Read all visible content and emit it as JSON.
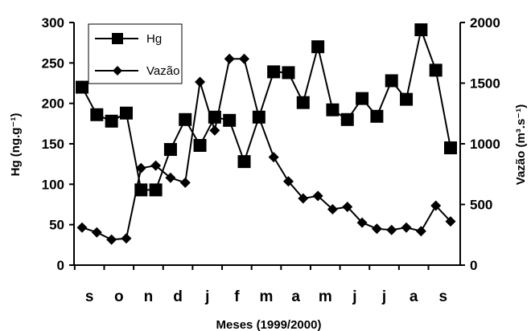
{
  "chart_data": {
    "type": "line",
    "title": "",
    "xlabel": "Meses (1999/2000)",
    "ylabel_left": "Hg (ng.g⁻¹)",
    "ylabel_right": "Vazão (m³.s⁻¹)",
    "ylim_left": [
      0,
      300
    ],
    "ylim_right": [
      0,
      2000
    ],
    "yticks_left": [
      0,
      50,
      100,
      150,
      200,
      250,
      300
    ],
    "yticks_right": [
      0,
      500,
      1000,
      1500,
      2000
    ],
    "month_labels": [
      "s",
      "o",
      "n",
      "d",
      "j",
      "f",
      "m",
      "a",
      "m",
      "j",
      "j",
      "a",
      "s"
    ],
    "grid": false,
    "legend_position": "top-left",
    "x": [
      1,
      2,
      3,
      4,
      5,
      6,
      7,
      8,
      9,
      10,
      11,
      12,
      13,
      14,
      15,
      16,
      17,
      18,
      19,
      20,
      21,
      22,
      23,
      24,
      25,
      26
    ],
    "series": [
      {
        "name": "Hg",
        "axis": "left",
        "marker": "square",
        "values": [
          220,
          186,
          178,
          188,
          93,
          93,
          143,
          180,
          148,
          183,
          179,
          128,
          183,
          239,
          238,
          201,
          270,
          192,
          180,
          206,
          184,
          228,
          205,
          291,
          241,
          145
        ]
      },
      {
        "name": "Vazão",
        "axis": "right",
        "marker": "diamond",
        "values": [
          310,
          270,
          210,
          220,
          800,
          820,
          720,
          680,
          1510,
          1110,
          1700,
          1700,
          1220,
          890,
          690,
          550,
          570,
          460,
          480,
          350,
          300,
          290,
          310,
          280,
          490,
          360
        ]
      }
    ]
  }
}
